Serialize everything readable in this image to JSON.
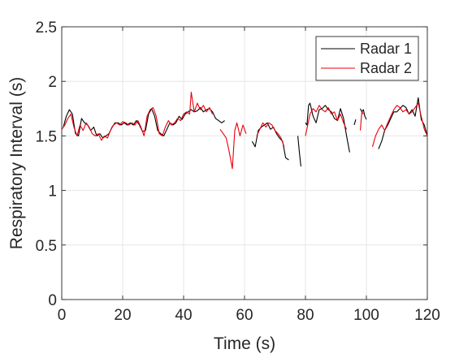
{
  "chart_data": {
    "type": "line",
    "title": "",
    "xlabel": "Time (s)",
    "ylabel": "Respiratory Interval (s)",
    "xlim": [
      0,
      120
    ],
    "ylim": [
      0,
      2.5
    ],
    "xticks": [
      "0",
      "20",
      "40",
      "60",
      "80",
      "100",
      "120"
    ],
    "yticks": [
      "0",
      "0.5",
      "1",
      "1.5",
      "2",
      "2.5"
    ],
    "grid": true,
    "legend_position": "top-right",
    "series": [
      {
        "name": "Radar 1",
        "color": "#000000",
        "points": [
          [
            [
              0.5,
              1.58
            ],
            [
              1.5,
              1.68
            ],
            [
              2.5,
              1.74
            ],
            [
              3.5,
              1.7
            ],
            [
              4.5,
              1.52
            ],
            [
              5.5,
              1.5
            ],
            [
              6.5,
              1.66
            ],
            [
              7.5,
              1.62
            ],
            [
              8.5,
              1.6
            ],
            [
              9.5,
              1.55
            ],
            [
              10.5,
              1.58
            ],
            [
              11.5,
              1.5
            ],
            [
              12.5,
              1.52
            ],
            [
              13.5,
              1.48
            ],
            [
              14.5,
              1.5
            ],
            [
              15.5,
              1.52
            ],
            [
              16.5,
              1.58
            ],
            [
              17.5,
              1.62
            ],
            [
              18.5,
              1.62
            ],
            [
              19.5,
              1.6
            ],
            [
              20.5,
              1.62
            ],
            [
              21.5,
              1.6
            ],
            [
              22.5,
              1.62
            ],
            [
              23.5,
              1.6
            ],
            [
              24.5,
              1.64
            ],
            [
              25.5,
              1.6
            ],
            [
              26.5,
              1.54
            ],
            [
              27.5,
              1.55
            ],
            [
              28.5,
              1.7
            ],
            [
              29.5,
              1.75
            ],
            [
              30.5,
              1.68
            ],
            [
              31.5,
              1.55
            ],
            [
              32.5,
              1.52
            ],
            [
              33.5,
              1.5
            ],
            [
              34.5,
              1.56
            ],
            [
              35.5,
              1.62
            ],
            [
              36.5,
              1.6
            ],
            [
              37.5,
              1.62
            ],
            [
              38.5,
              1.68
            ],
            [
              39.5,
              1.65
            ],
            [
              40.5,
              1.7
            ],
            [
              41.5,
              1.72
            ],
            [
              42.5,
              1.74
            ],
            [
              43.5,
              1.72
            ],
            [
              44.5,
              1.73
            ],
            [
              45.5,
              1.76
            ],
            [
              46.5,
              1.72
            ],
            [
              47.5,
              1.74
            ],
            [
              48.5,
              1.75
            ],
            [
              49.5,
              1.72
            ],
            [
              50.5,
              1.66
            ],
            [
              51.5,
              1.64
            ],
            [
              52.5,
              1.62
            ],
            [
              53.5,
              1.64
            ]
          ],
          [
            [
              62.5,
              1.45
            ],
            [
              63.5,
              1.4
            ],
            [
              64.5,
              1.55
            ],
            [
              65.5,
              1.58
            ],
            [
              66.5,
              1.6
            ],
            [
              67.5,
              1.62
            ],
            [
              68.5,
              1.56
            ],
            [
              69.5,
              1.58
            ],
            [
              70.5,
              1.52
            ],
            [
              71.5,
              1.48
            ],
            [
              72.5,
              1.45
            ],
            [
              73.5,
              1.3
            ],
            [
              74.5,
              1.28
            ]
          ],
          [
            [
              77.5,
              1.5
            ],
            [
              78.0,
              1.35
            ],
            [
              78.5,
              1.22
            ]
          ],
          [
            [
              80.0,
              1.62
            ],
            [
              80.5,
              1.6
            ],
            [
              81.0,
              1.78
            ],
            [
              81.5,
              1.8
            ],
            [
              82.5,
              1.68
            ],
            [
              83.5,
              1.62
            ],
            [
              84.5,
              1.74
            ],
            [
              85.5,
              1.75
            ],
            [
              86.5,
              1.78
            ],
            [
              87.5,
              1.74
            ],
            [
              88.5,
              1.72
            ],
            [
              89.5,
              1.66
            ],
            [
              90.5,
              1.64
            ],
            [
              91.5,
              1.75
            ],
            [
              92.5,
              1.66
            ],
            [
              93.5,
              1.5
            ],
            [
              94.5,
              1.35
            ]
          ],
          [
            [
              96.0,
              1.6
            ],
            [
              96.5,
              1.65
            ]
          ],
          [
            [
              98.0,
              1.75
            ],
            [
              98.5,
              1.72
            ],
            [
              99.0,
              1.74
            ],
            [
              99.5,
              1.68
            ],
            [
              100.0,
              1.65
            ]
          ],
          [
            [
              104.0,
              1.38
            ],
            [
              105.0,
              1.45
            ],
            [
              106.0,
              1.55
            ],
            [
              107.0,
              1.6
            ],
            [
              108.0,
              1.66
            ],
            [
              109.0,
              1.72
            ],
            [
              110.0,
              1.72
            ],
            [
              111.0,
              1.75
            ],
            [
              112.0,
              1.78
            ],
            [
              113.0,
              1.76
            ],
            [
              114.0,
              1.7
            ],
            [
              115.0,
              1.74
            ],
            [
              116.0,
              1.68
            ],
            [
              117.0,
              1.85
            ],
            [
              118.0,
              1.65
            ],
            [
              119.0,
              1.6
            ],
            [
              119.8,
              1.52
            ]
          ]
        ]
      },
      {
        "name": "Radar 2",
        "color": "#e8000b",
        "points": [
          [
            [
              0.0,
              1.56
            ],
            [
              1.0,
              1.6
            ],
            [
              2.0,
              1.66
            ],
            [
              3.0,
              1.7
            ],
            [
              4.0,
              1.58
            ],
            [
              5.0,
              1.5
            ],
            [
              6.0,
              1.6
            ],
            [
              7.0,
              1.55
            ],
            [
              8.0,
              1.62
            ],
            [
              9.0,
              1.58
            ],
            [
              10.0,
              1.52
            ],
            [
              11.0,
              1.5
            ],
            [
              12.0,
              1.52
            ],
            [
              13.0,
              1.46
            ],
            [
              14.0,
              1.5
            ],
            [
              15.0,
              1.48
            ],
            [
              16.0,
              1.55
            ],
            [
              17.0,
              1.6
            ],
            [
              18.0,
              1.62
            ],
            [
              19.0,
              1.6
            ],
            [
              20.0,
              1.63
            ],
            [
              21.0,
              1.62
            ],
            [
              22.0,
              1.6
            ],
            [
              23.0,
              1.62
            ],
            [
              24.0,
              1.6
            ],
            [
              25.0,
              1.64
            ],
            [
              26.0,
              1.58
            ],
            [
              27.0,
              1.5
            ],
            [
              28.0,
              1.68
            ],
            [
              29.0,
              1.74
            ],
            [
              30.0,
              1.76
            ],
            [
              31.0,
              1.68
            ],
            [
              32.0,
              1.52
            ],
            [
              33.0,
              1.5
            ],
            [
              34.0,
              1.58
            ],
            [
              35.0,
              1.64
            ],
            [
              36.0,
              1.6
            ],
            [
              37.0,
              1.62
            ],
            [
              38.0,
              1.66
            ],
            [
              39.0,
              1.64
            ],
            [
              40.0,
              1.7
            ],
            [
              41.0,
              1.72
            ],
            [
              42.0,
              1.7
            ],
            [
              42.5,
              1.9
            ],
            [
              43.5,
              1.72
            ],
            [
              44.5,
              1.8
            ],
            [
              45.5,
              1.74
            ],
            [
              46.5,
              1.78
            ],
            [
              47.5,
              1.72
            ],
            [
              48.5,
              1.76
            ],
            [
              49.5,
              1.7
            ]
          ],
          [
            [
              52.0,
              1.56
            ],
            [
              53.0,
              1.52
            ],
            [
              54.0,
              1.48
            ],
            [
              55.0,
              1.35
            ],
            [
              56.0,
              1.2
            ],
            [
              56.8,
              1.55
            ],
            [
              57.5,
              1.62
            ],
            [
              58.5,
              1.5
            ],
            [
              59.5,
              1.6
            ],
            [
              60.5,
              1.52
            ]
          ],
          [
            [
              64.0,
              1.5
            ],
            [
              65.0,
              1.56
            ],
            [
              66.0,
              1.62
            ],
            [
              67.0,
              1.58
            ],
            [
              68.0,
              1.62
            ],
            [
              69.0,
              1.6
            ],
            [
              70.0,
              1.55
            ],
            [
              71.0,
              1.52
            ],
            [
              72.0,
              1.48
            ],
            [
              73.0,
              1.4
            ]
          ],
          [
            [
              80.0,
              1.5
            ],
            [
              81.5,
              1.7
            ],
            [
              82.5,
              1.75
            ],
            [
              83.5,
              1.72
            ],
            [
              84.5,
              1.78
            ],
            [
              85.5,
              1.74
            ],
            [
              86.5,
              1.72
            ],
            [
              87.5,
              1.76
            ],
            [
              88.5,
              1.7
            ],
            [
              89.5,
              1.72
            ],
            [
              90.5,
              1.64
            ],
            [
              91.5,
              1.7
            ],
            [
              92.5,
              1.62
            ],
            [
              93.5,
              1.56
            ]
          ],
          [
            [
              98.0,
              1.55
            ],
            [
              98.5,
              1.72
            ],
            [
              99.0,
              1.7
            ]
          ],
          [
            [
              102.0,
              1.4
            ],
            [
              103.0,
              1.5
            ],
            [
              104.0,
              1.56
            ],
            [
              105.0,
              1.6
            ],
            [
              106.0,
              1.55
            ],
            [
              107.0,
              1.62
            ],
            [
              108.0,
              1.68
            ],
            [
              109.0,
              1.74
            ],
            [
              110.0,
              1.78
            ],
            [
              111.0,
              1.76
            ],
            [
              112.0,
              1.72
            ],
            [
              113.0,
              1.74
            ],
            [
              114.0,
              1.7
            ],
            [
              115.0,
              1.72
            ],
            [
              116.0,
              1.76
            ],
            [
              117.0,
              1.8
            ],
            [
              118.0,
              1.68
            ],
            [
              119.0,
              1.56
            ],
            [
              120.0,
              1.5
            ]
          ]
        ]
      }
    ]
  }
}
